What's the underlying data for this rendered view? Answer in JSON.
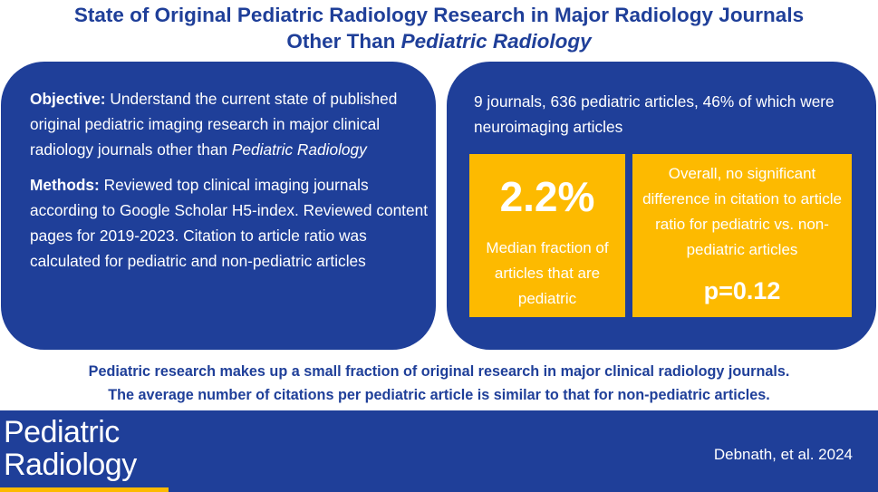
{
  "title": {
    "line1": "State of Original Pediatric Radiology Research in Major Radiology Journals",
    "line2_prefix": "Other Than ",
    "line2_italic": "Pediatric Radiology"
  },
  "objective": {
    "label": "Objective:",
    "text": " Understand the current state of published original pediatric imaging research in major clinical radiology journals other than ",
    "italic": "Pediatric Radiology"
  },
  "methods": {
    "label": "Methods:",
    "text": " Reviewed top clinical imaging journals according to Google Scholar H5-index. Reviewed content pages for 2019-2023. Citation to article ratio was calculated for pediatric and non-pediatric articles"
  },
  "summary": "9 journals, 636 pediatric articles, 46% of which were neuroimaging articles",
  "stat_box": {
    "value": "2.2%",
    "description": "Median fraction of articles that are pediatric"
  },
  "comparison_box": {
    "description": "Overall, no significant difference in citation to article ratio for pediatric vs. non-pediatric articles",
    "p_value": "p=0.12"
  },
  "conclusion": {
    "line1": "Pediatric research makes up a small fraction of original research in major clinical radiology journals.",
    "line2": "The average number of citations per pediatric article is similar to that for non-pediatric articles."
  },
  "footer": {
    "logo_line1": "Pediatric",
    "logo_line2": "Radiology",
    "citation": "Debnath, et al. 2024"
  },
  "colors": {
    "navy": "#1F3F99",
    "gold": "#FDBA00",
    "white": "#FFFFFF"
  }
}
